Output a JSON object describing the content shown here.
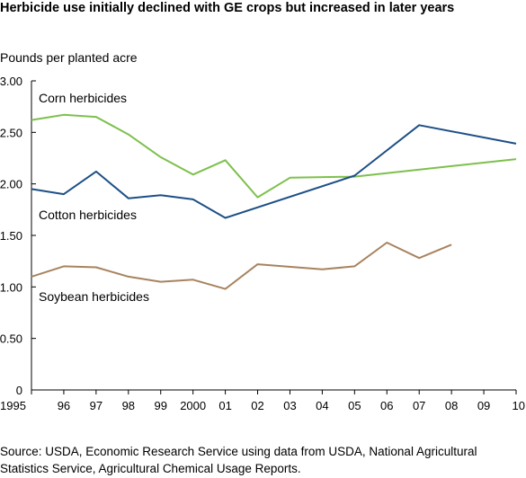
{
  "chart_data": {
    "type": "line",
    "title": "Herbicide use initially declined with GE crops but increased in later years",
    "ylabel": "Pounds per planted acre",
    "xlabel": "",
    "ylim": [
      0,
      3.0
    ],
    "xlim": [
      1995,
      2010
    ],
    "yticks": [
      "0",
      "0.50",
      "1.00",
      "1.50",
      "2.00",
      "2.50",
      "3.00"
    ],
    "ytick_values": [
      0,
      0.5,
      1.0,
      1.5,
      2.0,
      2.5,
      3.0
    ],
    "xticks": [
      "1995",
      "96",
      "97",
      "98",
      "99",
      "2000",
      "01",
      "02",
      "03",
      "04",
      "05",
      "06",
      "07",
      "08",
      "09",
      "10"
    ],
    "xtick_values": [
      1995,
      1996,
      1997,
      1998,
      1999,
      2000,
      2001,
      2002,
      2003,
      2004,
      2005,
      2006,
      2007,
      2008,
      2009,
      2010
    ],
    "grid": false,
    "series": [
      {
        "name": "Corn herbicides",
        "color": "#7dc04b",
        "x": [
          1995,
          1996,
          1997,
          1998,
          1999,
          2000,
          2001,
          2002,
          2003,
          2005,
          2010
        ],
        "y": [
          2.62,
          2.67,
          2.65,
          2.48,
          2.26,
          2.09,
          2.23,
          1.87,
          2.06,
          2.07,
          2.24
        ]
      },
      {
        "name": "Cotton herbicides",
        "color": "#1d4f86",
        "x": [
          1995,
          1996,
          1997,
          1998,
          1999,
          2000,
          2001,
          2005,
          2007,
          2010
        ],
        "y": [
          1.95,
          1.9,
          2.12,
          1.86,
          1.89,
          1.85,
          1.67,
          2.08,
          2.57,
          2.39
        ]
      },
      {
        "name": "Soybean herbicides",
        "color": "#a8835f",
        "x": [
          1995,
          1996,
          1997,
          1998,
          1999,
          2000,
          2001,
          2002,
          2004,
          2005,
          2006,
          2007,
          2008
        ],
        "y": [
          1.1,
          1.2,
          1.19,
          1.1,
          1.05,
          1.07,
          0.98,
          1.22,
          1.17,
          1.2,
          1.43,
          1.28,
          1.41
        ]
      }
    ]
  },
  "source": {
    "line1": "Source: USDA, Economic Research Service using data from USDA, National Agricultural",
    "line2": "Statistics Service, Agricultural Chemical Usage Reports."
  }
}
